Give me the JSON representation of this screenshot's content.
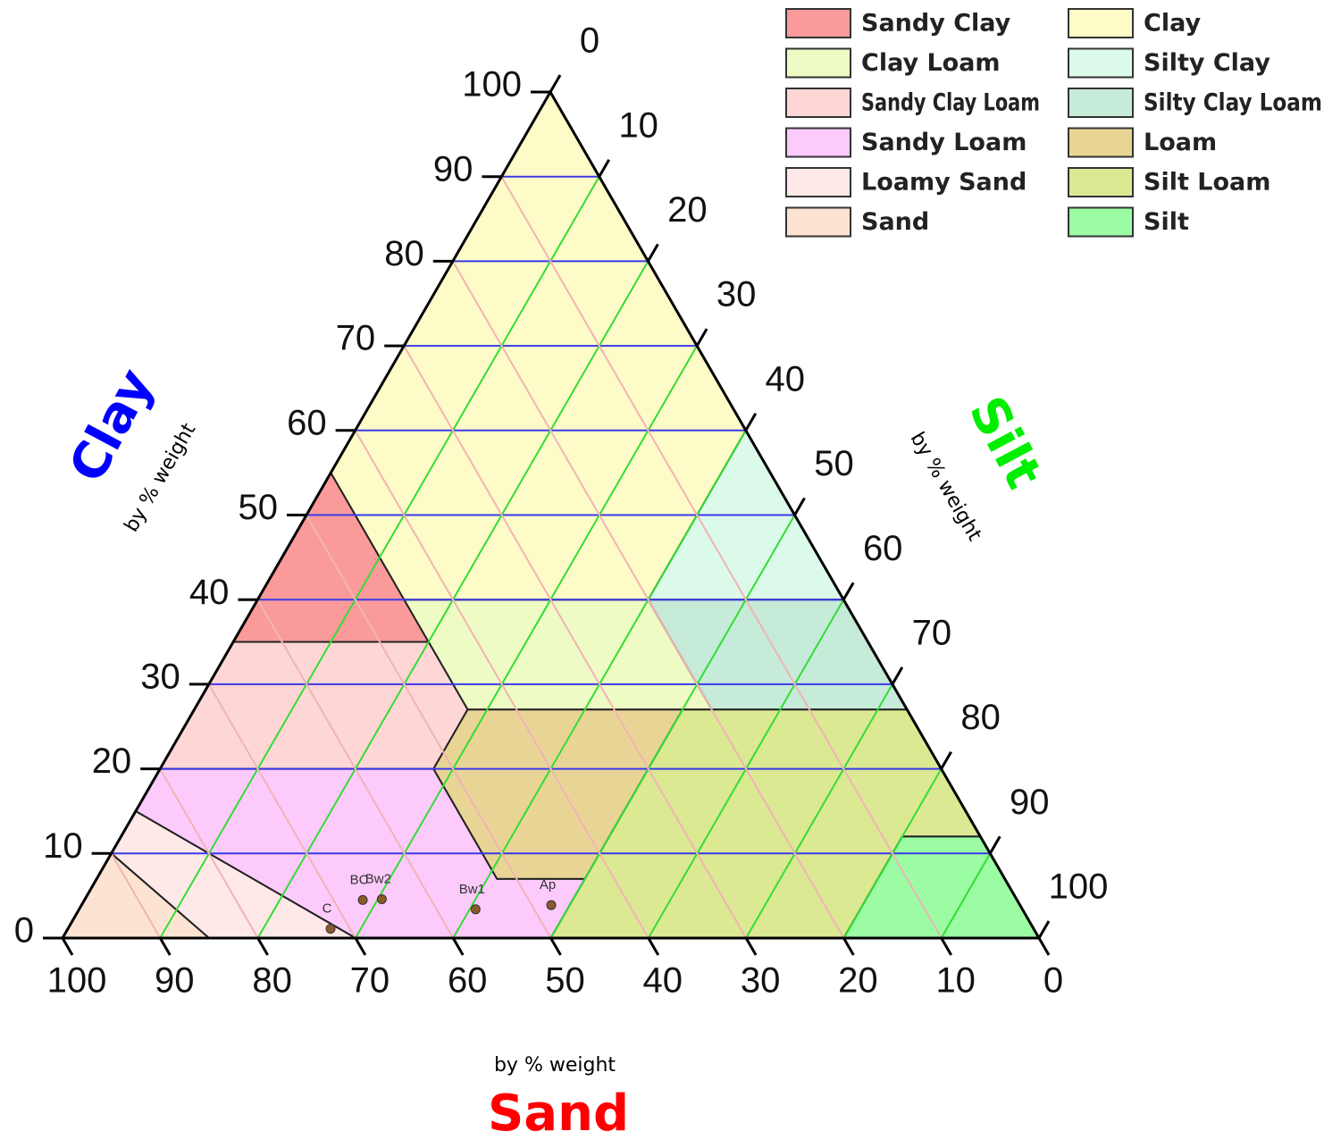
{
  "chart_data": {
    "type": "ternary",
    "grid": true,
    "clay_axis": {
      "title": "Clay",
      "subtitle": "by % weight",
      "color": "#0000ff",
      "grid_color": "#3a3ae8",
      "ticks": [
        0,
        10,
        20,
        30,
        40,
        50,
        60,
        70,
        80,
        90,
        100
      ]
    },
    "silt_axis": {
      "title": "Silt",
      "subtitle": "by % weight",
      "color": "#00ee00",
      "grid_color": "#33dd33",
      "ticks": [
        0,
        10,
        20,
        30,
        40,
        50,
        60,
        70,
        80,
        90,
        100
      ]
    },
    "sand_axis": {
      "title": "Sand",
      "subtitle": "by % weight",
      "color": "#ff0000",
      "grid_color": "#f0b4b4",
      "ticks": [
        0,
        10,
        20,
        30,
        40,
        50,
        60,
        70,
        80,
        90,
        100
      ]
    },
    "regions": [
      {
        "name": "Sandy Clay",
        "color": "#fb9a9a",
        "sand": [
          45,
          65,
          45
        ],
        "clay": [
          55,
          35,
          35
        ]
      },
      {
        "name": "Clay Loam",
        "color": "#eefbc4",
        "sand": [
          45,
          45,
          20,
          20
        ],
        "clay": [
          40,
          27,
          27,
          40
        ]
      },
      {
        "name": "Sandy Clay Loam",
        "color": "#fed6d6",
        "sand": [
          45,
          65,
          80,
          52,
          45
        ],
        "clay": [
          35,
          35,
          20,
          20,
          27
        ]
      },
      {
        "name": "Sandy Loam",
        "color": "#fdcafc",
        "sand": [
          80,
          52,
          52,
          43,
          50,
          70,
          85
        ],
        "clay": [
          20,
          20,
          7,
          7,
          0,
          0,
          15
        ]
      },
      {
        "name": "Loamy Sand",
        "color": "#ffe8e8",
        "sand": [
          85,
          70,
          85,
          90
        ],
        "clay": [
          15,
          0,
          0,
          10
        ]
      },
      {
        "name": "Sand",
        "color": "#fde4d2",
        "sand": [
          90,
          85,
          100
        ],
        "clay": [
          10,
          0,
          0
        ]
      },
      {
        "name": "Clay",
        "color": "#fdfbc7",
        "sand": [
          0,
          45,
          45,
          20,
          0
        ],
        "clay": [
          100,
          55,
          40,
          40,
          60
        ]
      },
      {
        "name": "Silty Clay",
        "color": "#dcfaea",
        "sand": [
          20,
          0,
          0
        ],
        "clay": [
          40,
          60,
          40
        ]
      },
      {
        "name": "Silty Clay Loam",
        "color": "#c6ebd8",
        "sand": [
          20,
          20,
          0,
          0
        ],
        "clay": [
          40,
          27,
          27,
          40
        ]
      },
      {
        "name": "Loam",
        "color": "#e8d596",
        "sand": [
          45,
          52,
          52,
          43,
          23
        ],
        "clay": [
          27,
          20,
          7,
          7,
          27
        ]
      },
      {
        "name": "Silt Loam",
        "color": "#dbe993",
        "sand": [
          23,
          0,
          0,
          8,
          20,
          50,
          43
        ],
        "clay": [
          27,
          27,
          12,
          12,
          0,
          0,
          7
        ]
      },
      {
        "name": "Silt",
        "color": "#9bfca4",
        "sand": [
          0,
          8,
          20,
          0
        ],
        "clay": [
          12,
          12,
          0,
          0
        ]
      }
    ],
    "samples": {
      "color": "#8a5a2a",
      "labels": [
        "BC",
        "Bw2",
        "Bw1",
        "Ap",
        "C"
      ],
      "sand": [
        67,
        65,
        56,
        48,
        72
      ],
      "clay": [
        4.5,
        4.6,
        3.4,
        3.9,
        1.1
      ]
    }
  }
}
